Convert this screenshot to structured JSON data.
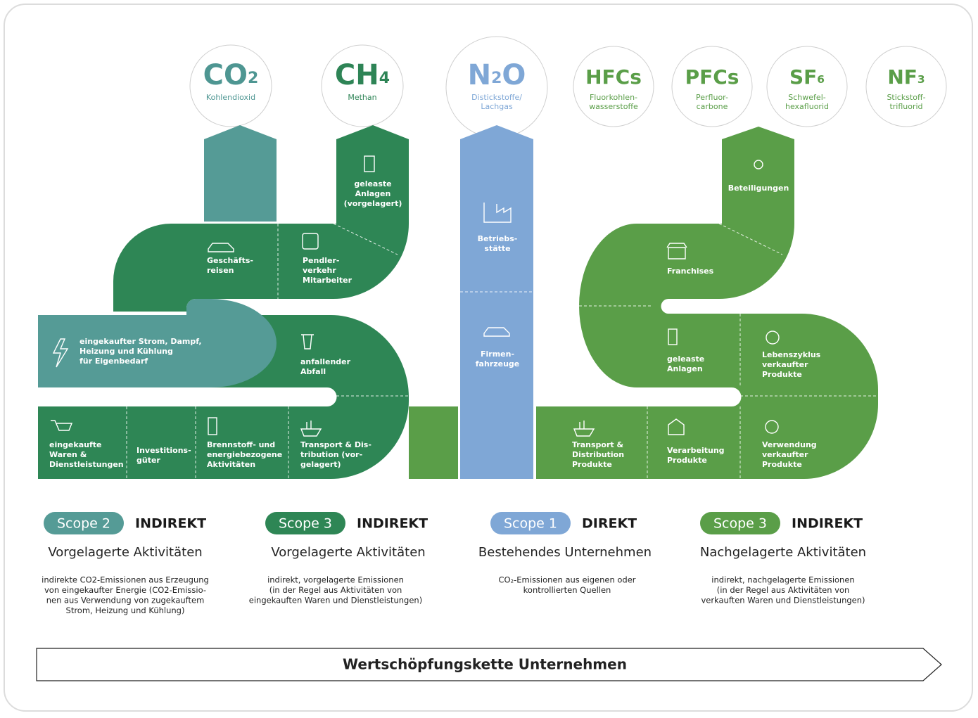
{
  "gases": [
    {
      "formula": [
        {
          "text": "CO"
        },
        {
          "text": "2",
          "sub": true
        }
      ],
      "name": [
        "Kohlendioxid"
      ]
    },
    {
      "formula": [
        {
          "text": "CH"
        },
        {
          "text": "4",
          "sub": true
        }
      ],
      "name": [
        "Methan"
      ]
    },
    {
      "formula": [
        {
          "text": "N"
        },
        {
          "text": "2",
          "sub": true
        },
        {
          "text": "O"
        }
      ],
      "name": [
        "Distickstoffe/",
        "Lachgas"
      ]
    },
    {
      "formula": [
        {
          "text": "HFCs"
        }
      ],
      "name": [
        "Fluorkohlen-",
        "wasserstoffe"
      ]
    },
    {
      "formula": [
        {
          "text": "PFCs"
        }
      ],
      "name": [
        "Perfluor-",
        "carbone"
      ]
    },
    {
      "formula": [
        {
          "text": "SF"
        },
        {
          "text": "6",
          "sub": true
        }
      ],
      "name": [
        "Schwefel-",
        "hexafluorid"
      ]
    },
    {
      "formula": [
        {
          "text": "NF"
        },
        {
          "text": "3",
          "sub": true
        }
      ],
      "name": [
        "Stickstoff-",
        "trifluorid"
      ]
    }
  ],
  "segments": [
    [
      "geleaste",
      "Anlagen",
      "(vorgelagert)"
    ],
    [
      "Geschäfts-",
      "reisen"
    ],
    [
      "Pendler-",
      "verkehr",
      "Mitarbeiter"
    ],
    [
      "eingekaufter Strom, Dampf,",
      "Heizung und Kühlung",
      "für Eigenbedarf"
    ],
    [
      "anfallender",
      "Abfall"
    ],
    [
      "eingekaufte",
      "Waren &",
      "Dienstleistungen"
    ],
    [
      "Investitions-",
      "güter"
    ],
    [
      "Brennstoff- und",
      "energiebezogene",
      "Aktivitäten"
    ],
    [
      "Transport & Dis-",
      "tribution (vor-",
      "gelagert)"
    ],
    [
      "Betriebs-",
      "stätte"
    ],
    [
      "Firmen-",
      "fahrzeuge"
    ],
    [
      "Beteiligungen"
    ],
    [
      "Franchises"
    ],
    [
      "geleaste",
      "Anlagen"
    ],
    [
      "Lebenszyklus",
      "verkaufter",
      "Produkte"
    ],
    [
      "Transport &",
      "Distribution",
      "Produkte"
    ],
    [
      "Verarbeitung",
      "Produkte"
    ],
    [
      "Verwendung",
      "verkaufter",
      "Produkte"
    ]
  ],
  "scopes": [
    {
      "badge": "Scope 2",
      "kind": "INDIREKT",
      "title": "Vorgelagerte Aktivitäten",
      "description": [
        "indirekte CO2-Emissionen aus Erzeugung",
        "von eingekaufter Energie (CO2-Emissio-",
        "nen aus Verwendung von zugekauftem",
        "Strom, Heizung und Kühlung)"
      ]
    },
    {
      "badge": "Scope 3",
      "kind": "INDIREKT",
      "title": "Vorgelagerte Aktivitäten",
      "description": [
        "indirekt, vorgelagerte Emissionen",
        "(in der Regel aus Aktivitäten von",
        "eingekauften Waren und Dienstleistungen)"
      ]
    },
    {
      "badge": "Scope 1",
      "kind": "DIREKT",
      "title": "Bestehendes Unternehmen",
      "description": [
        "CO₂-Emissionen aus eigenen oder",
        "kontrollierten Quellen"
      ]
    },
    {
      "badge": "Scope 3",
      "kind": "INDIREKT",
      "title": "Nachgelagerte Aktivitäten",
      "description": [
        "indirekt, nachgelagerte Emissionen",
        "(in der Regel aus Aktivitäten von",
        "verkauften Waren und Dienstleistungen)"
      ]
    }
  ],
  "footer": "Wertschöpfungskette Unternehmen"
}
